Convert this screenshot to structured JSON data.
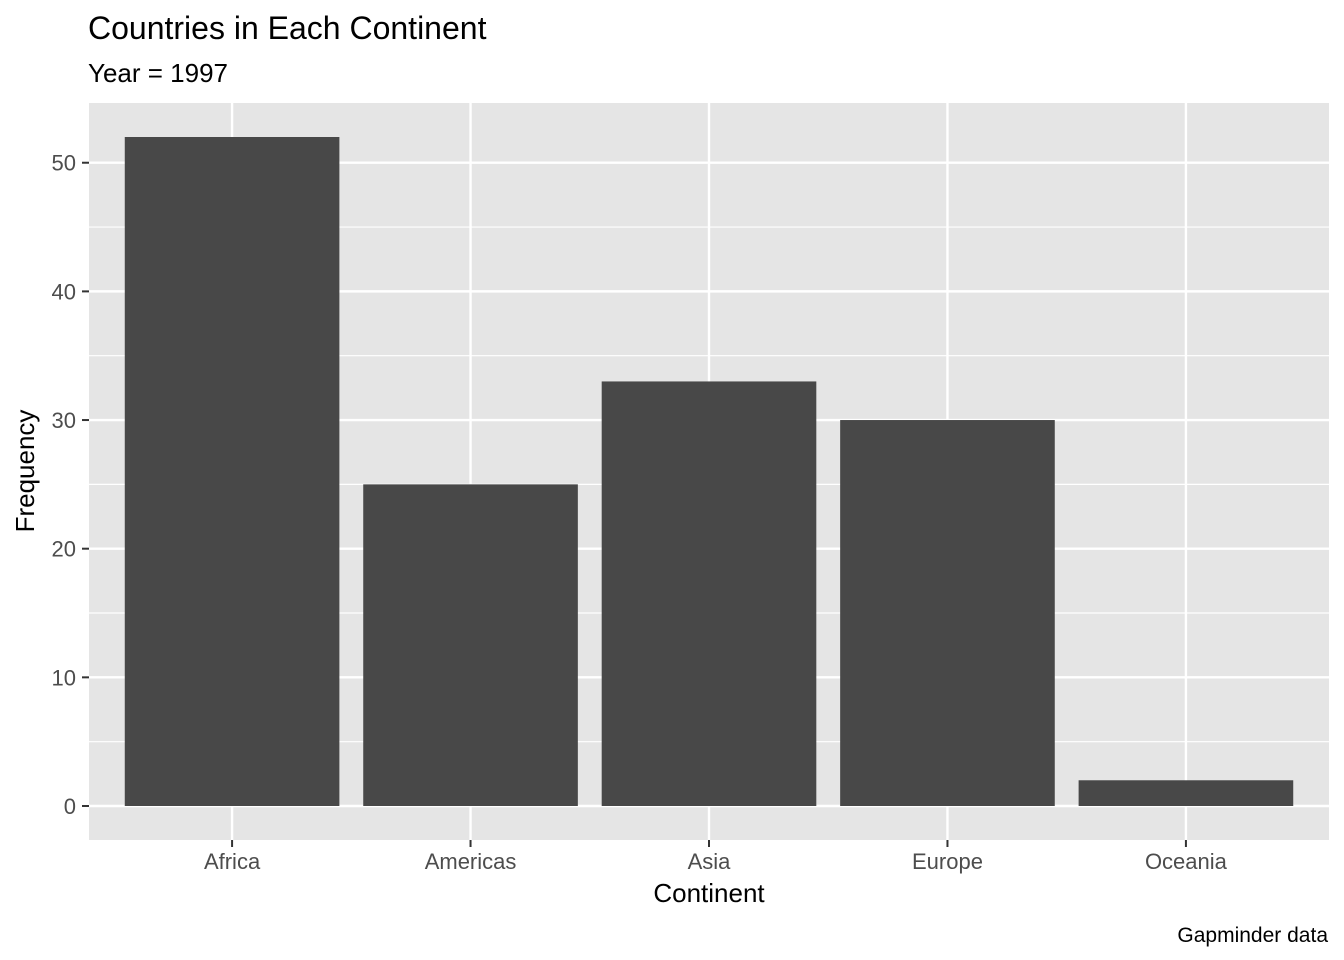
{
  "chart_data": {
    "type": "bar",
    "title": "Countries in Each Continent",
    "subtitle": "Year = 1997",
    "xlabel": "Continent",
    "ylabel": "Frequency",
    "caption": "Gapminder data",
    "categories": [
      "Africa",
      "Americas",
      "Asia",
      "Europe",
      "Oceania"
    ],
    "values": [
      52,
      25,
      33,
      30,
      2
    ],
    "ylim": [
      0,
      54.6
    ],
    "yticks": [
      0,
      10,
      20,
      30,
      40,
      50
    ],
    "grid": true,
    "colors": {
      "bar": "#484848",
      "panel": "#e5e5e5",
      "grid": "#ffffff",
      "tick": "#333333"
    }
  }
}
